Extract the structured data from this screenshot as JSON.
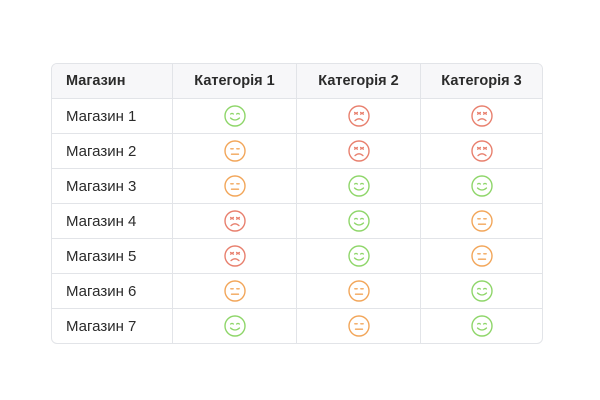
{
  "table": {
    "columns": [
      "Магазин",
      "Категорія 1",
      "Категорія 2",
      "Категорія 3"
    ],
    "rows": [
      {
        "store": "Магазин 1",
        "ratings": [
          "happy",
          "sad",
          "sad"
        ]
      },
      {
        "store": "Магазин 2",
        "ratings": [
          "neutral",
          "sad",
          "sad"
        ]
      },
      {
        "store": "Магазин 3",
        "ratings": [
          "neutral",
          "happy",
          "happy"
        ]
      },
      {
        "store": "Магазин 4",
        "ratings": [
          "sad",
          "happy",
          "neutral"
        ]
      },
      {
        "store": "Магазин 5",
        "ratings": [
          "sad",
          "happy",
          "neutral"
        ]
      },
      {
        "store": "Магазин 6",
        "ratings": [
          "neutral",
          "neutral",
          "happy"
        ]
      },
      {
        "store": "Магазин 7",
        "ratings": [
          "happy",
          "neutral",
          "happy"
        ]
      }
    ]
  },
  "colors": {
    "happy": "#8fd66a",
    "neutral": "#f2a65a",
    "sad": "#e8806e"
  },
  "icons": {
    "happy": "happy-face-icon",
    "neutral": "neutral-face-icon",
    "sad": "sad-face-icon"
  }
}
